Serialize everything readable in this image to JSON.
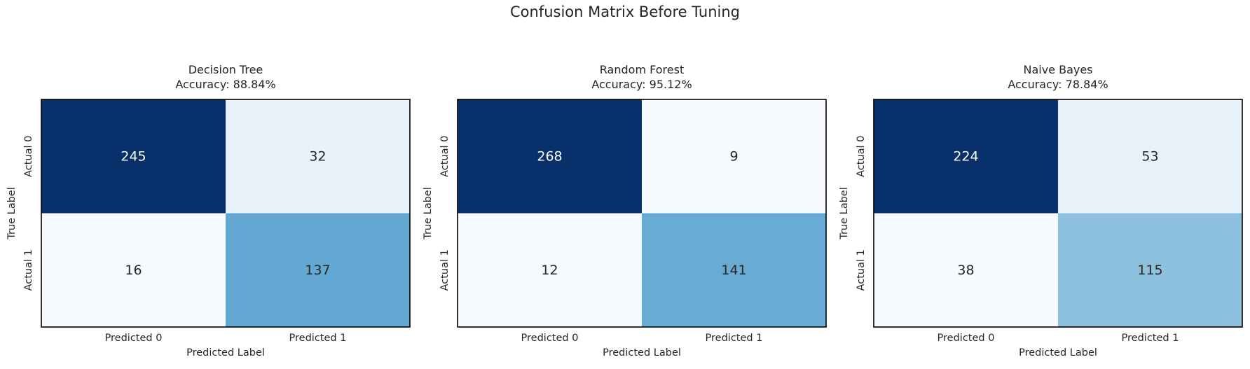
{
  "figure": {
    "title": "Confusion Matrix Before Tuning"
  },
  "chart_data": [
    {
      "type": "heatmap",
      "title": "Decision Tree",
      "subtitle": "Accuracy: 88.84%",
      "xlabel": "Predicted Label",
      "ylabel": "True Label",
      "x_ticks": [
        "Predicted 0",
        "Predicted 1"
      ],
      "y_ticks": [
        "Actual 0",
        "Actual 1"
      ],
      "values": [
        [
          245,
          32
        ],
        [
          16,
          137
        ]
      ],
      "colormap": "Blues",
      "colorbar": false
    },
    {
      "type": "heatmap",
      "title": "Random Forest",
      "subtitle": "Accuracy: 95.12%",
      "xlabel": "Predicted Label",
      "ylabel": "True Label",
      "x_ticks": [
        "Predicted 0",
        "Predicted 1"
      ],
      "y_ticks": [
        "Actual 0",
        "Actual 1"
      ],
      "values": [
        [
          268,
          9
        ],
        [
          12,
          141
        ]
      ],
      "colormap": "Blues",
      "colorbar": false
    },
    {
      "type": "heatmap",
      "title": "Naive Bayes",
      "subtitle": "Accuracy: 78.84%",
      "xlabel": "Predicted Label",
      "ylabel": "True Label",
      "x_ticks": [
        "Predicted 0",
        "Predicted 1"
      ],
      "y_ticks": [
        "Actual 0",
        "Actual 1"
      ],
      "values": [
        [
          224,
          53
        ],
        [
          38,
          115
        ]
      ],
      "colormap": "Blues",
      "colorbar": false
    }
  ]
}
